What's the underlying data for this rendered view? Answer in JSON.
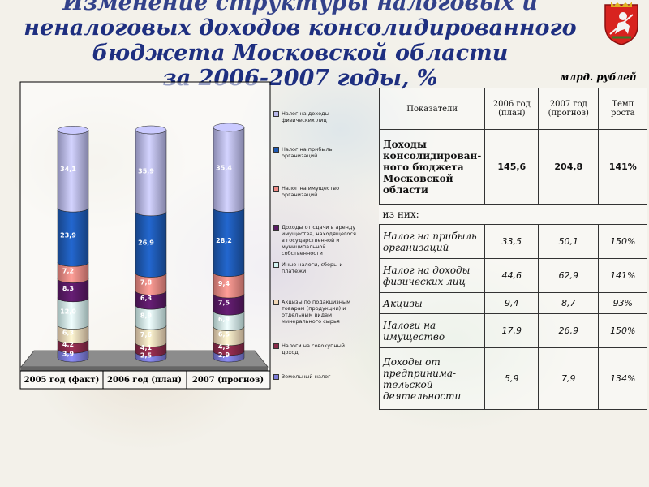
{
  "title_lines": [
    "Изменение структуры налоговых и",
    "неналоговых доходов консолидированного",
    "бюджета Московской области",
    "за 2006-2007 годы, %"
  ],
  "units": "млрд. рублей",
  "chart_data": {
    "type": "bar",
    "stacked": true,
    "three_d": true,
    "categories": [
      "2005 год (факт)",
      "2006 год (план)",
      "2007 (прогноз)"
    ],
    "series": [
      {
        "name": "Земельный налог",
        "color": "#7b7bd8",
        "values": [
          3.9,
          2.5,
          2.9
        ]
      },
      {
        "name": "Налоги на совокупный доход",
        "color": "#8a2a4a",
        "values": [
          4.2,
          4.1,
          4.3
        ]
      },
      {
        "name": "Акцизы по подакцизным товарам (продукции) и отдельным видам минерального сырья",
        "color": "#f2d8b8",
        "values": [
          6.3,
          7.6,
          6.5
        ]
      },
      {
        "name": "Иные налоги, сборы и платежи",
        "color": "#d2f2f0",
        "values": [
          12.0,
          8.9,
          6.9
        ]
      },
      {
        "name": "Доходы от сдачи в аренду имущества, находящегося в государственной и муниципальной собственности",
        "color": "#5a1a66",
        "values": [
          8.3,
          6.3,
          7.5
        ]
      },
      {
        "name": "Налог на имущество организаций",
        "color": "#f08a84",
        "values": [
          7.2,
          7.8,
          9.4
        ]
      },
      {
        "name": "Налог на прибыль организаций",
        "color": "#1e5ab4",
        "values": [
          23.9,
          26.9,
          28.2
        ]
      },
      {
        "name": "Налог на доходы физических лиц",
        "color": "#b8b8ea",
        "values": [
          34.1,
          35.9,
          35.4
        ]
      }
    ],
    "value_labels": [
      [
        "3,9",
        "2,5",
        "2,9"
      ],
      [
        "4,2",
        "4,1",
        "4,3"
      ],
      [
        "6,3",
        "7,6",
        "6,5"
      ],
      [
        "12,0",
        "8,9",
        "6,9"
      ],
      [
        "8,3",
        "6,3",
        "7,5"
      ],
      [
        "7,2",
        "7,8",
        "9,4"
      ],
      [
        "23,9",
        "26,9",
        "28,2"
      ],
      [
        "34,1",
        "35,9",
        "35,4"
      ]
    ],
    "legend_order": [
      7,
      6,
      5,
      4,
      3,
      2,
      1,
      0
    ],
    "legend_lines": [
      [
        "Налог на доходы",
        "физических лиц"
      ],
      [
        "Налог на прибыль",
        "организаций"
      ],
      [
        "Налог на имущество",
        "организаций"
      ],
      [
        "Доходы от сдачи в аренду",
        "имущества, находящегося",
        "в государственной и",
        "муниципальной",
        "собственности"
      ],
      [
        "Иные налоги, сборы и",
        "платежи"
      ],
      [
        "Акцизы по подакцизным",
        "товарам (продукции) и",
        "отдельным видам",
        "минерального сырья"
      ],
      [
        "Налоги на совокупный",
        "доход"
      ],
      [
        "Земельный налог"
      ]
    ]
  },
  "table": {
    "headers": [
      "Показатели",
      "2006 год (план)",
      "2007 год (прогноз)",
      "Темп роста"
    ],
    "rows": [
      {
        "indicator": "Доходы консолидирован-ного бюджета Московской области",
        "v2006": "145,6",
        "v2007": "204,8",
        "growth": "141%",
        "style": "bold"
      },
      {
        "indicator": "из них:",
        "v2006": "",
        "v2007": "",
        "growth": "",
        "style": "sub"
      },
      {
        "indicator": "Налог на прибыль организаций",
        "v2006": "33,5",
        "v2007": "50,1",
        "growth": "150%",
        "style": "it"
      },
      {
        "indicator": "Налог на доходы физических лиц",
        "v2006": "44,6",
        "v2007": "62,9",
        "growth": "141%",
        "style": "it"
      },
      {
        "indicator": "Акцизы",
        "v2006": "9,4",
        "v2007": "8,7",
        "growth": "93%",
        "style": "it"
      },
      {
        "indicator": "Налоги на имущество",
        "v2006": "17,9",
        "v2007": "26,9",
        "growth": "150%",
        "style": "it"
      },
      {
        "indicator": "Доходы от предпринима-тельской деятельности",
        "v2006": "5,9",
        "v2007": "7,9",
        "growth": "134%",
        "style": "it"
      }
    ]
  }
}
